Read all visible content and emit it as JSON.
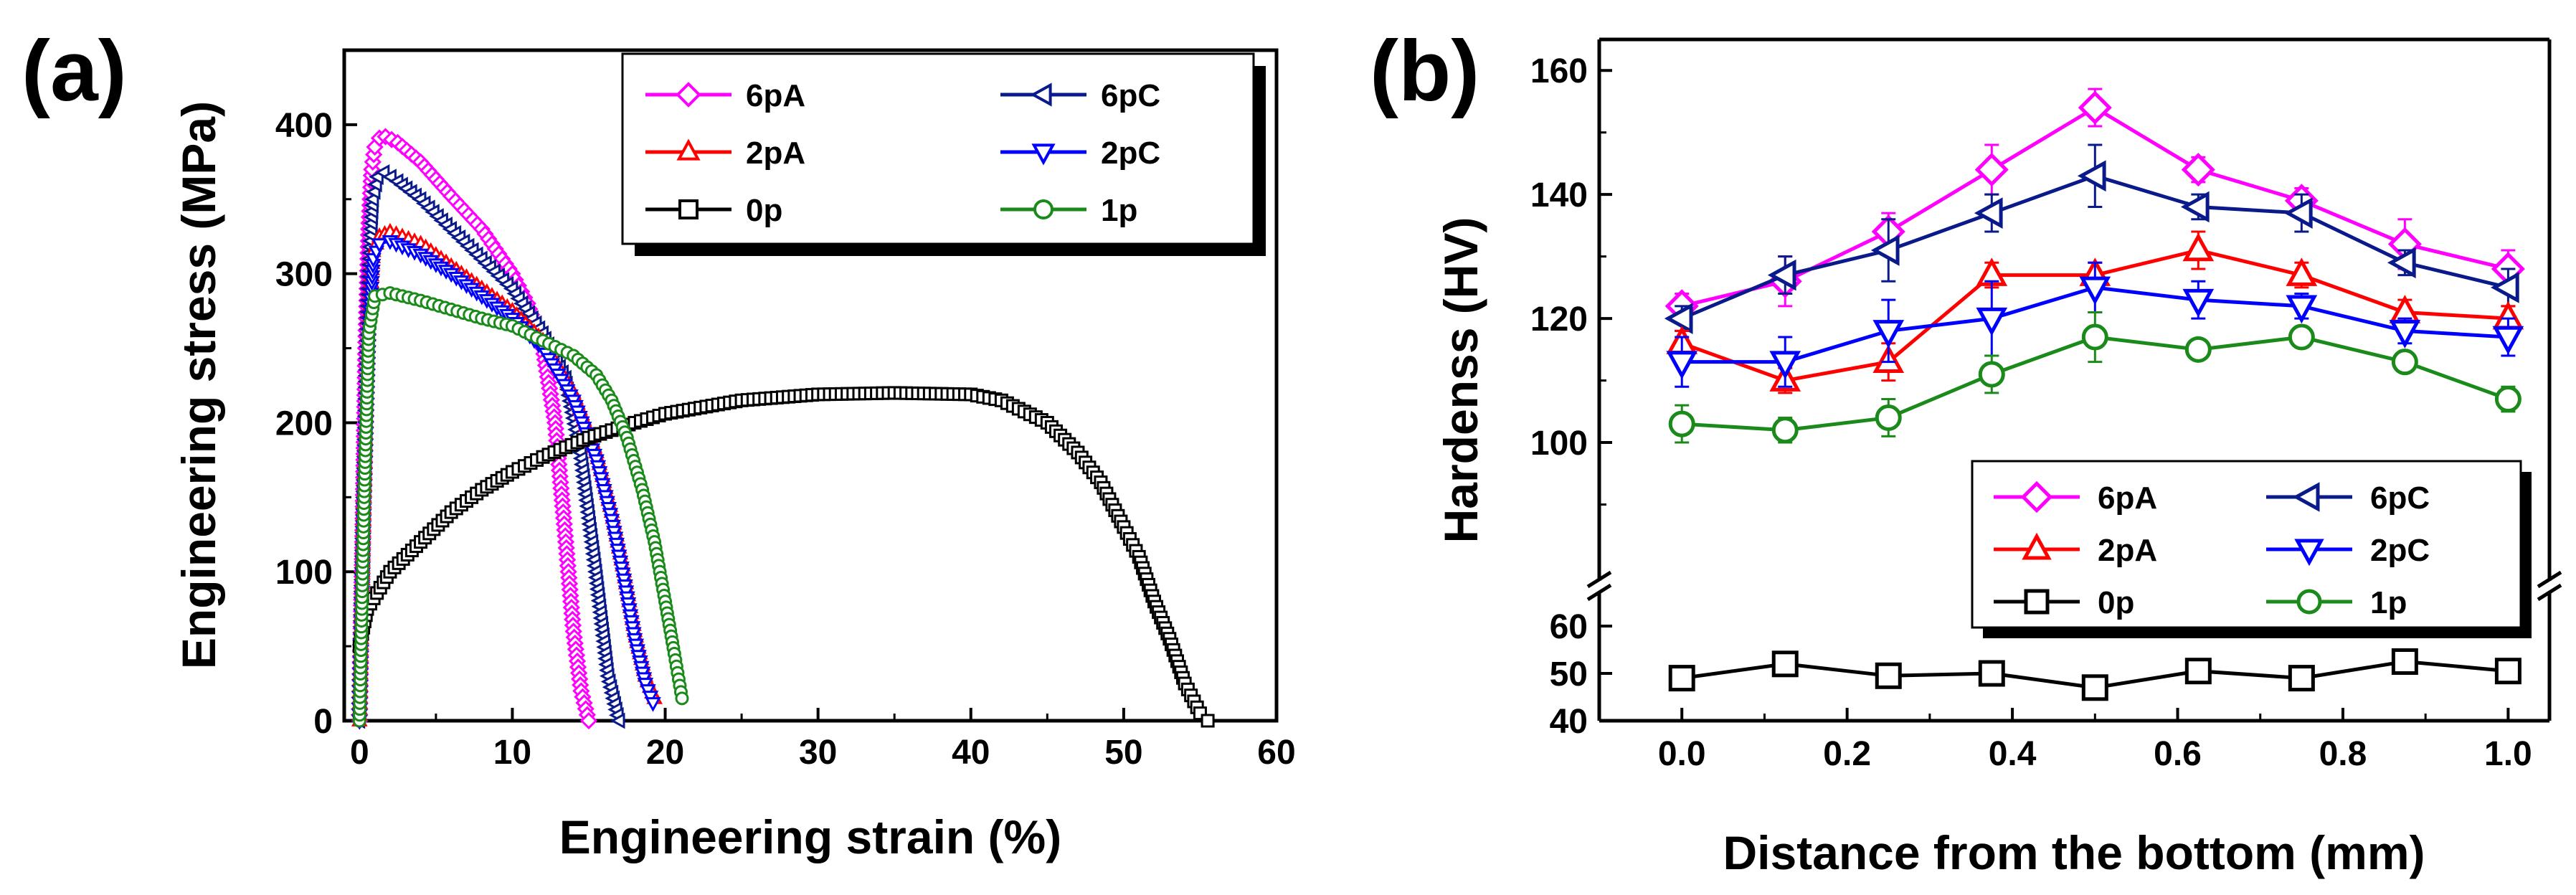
{
  "chart_data": [
    {
      "panel": "(a)",
      "type": "line",
      "xlabel": "Engineering strain (%)",
      "ylabel": "Engineering stress (MPa)",
      "xlim": [
        -1,
        60
      ],
      "ylim": [
        0,
        450
      ],
      "xticks": [
        0,
        10,
        20,
        30,
        40,
        50,
        60
      ],
      "yticks": [
        0,
        100,
        200,
        300,
        400
      ],
      "grid": false,
      "legend_position": "top-right",
      "legend_columns": 2,
      "series": [
        {
          "name": "6pA",
          "color": "#ff00ff",
          "marker": "diamond",
          "x": [
            0,
            0.2,
            0.4,
            0.6,
            0.8,
            1.0,
            1.3,
            1.7,
            2.5,
            4,
            6,
            8,
            10,
            11,
            12,
            12.8,
            13.5,
            14,
            14.5,
            15
          ],
          "y": [
            0,
            120,
            250,
            330,
            370,
            385,
            391,
            392,
            388,
            375,
            352,
            330,
            300,
            280,
            250,
            200,
            120,
            60,
            20,
            0
          ]
        },
        {
          "name": "6pC",
          "color": "#0a1a8a",
          "marker": "triangle-left",
          "x": [
            0,
            0.3,
            0.6,
            0.9,
            1.2,
            1.6,
            2.5,
            4,
            6,
            8,
            10,
            12,
            13.5,
            14.5,
            15.5,
            16.3,
            17
          ],
          "y": [
            0,
            150,
            290,
            350,
            365,
            368,
            362,
            350,
            330,
            310,
            290,
            260,
            230,
            180,
            100,
            30,
            0
          ]
        },
        {
          "name": "2pA",
          "color": "#ff0000",
          "marker": "triangle-up",
          "x": [
            0,
            0.3,
            0.6,
            0.9,
            1.3,
            2,
            4,
            6,
            8,
            10,
            12,
            14,
            15.5,
            16.5,
            17.3,
            18,
            18.7,
            19.3
          ],
          "y": [
            0,
            150,
            270,
            315,
            325,
            328,
            320,
            305,
            290,
            275,
            255,
            220,
            180,
            140,
            100,
            60,
            30,
            15
          ]
        },
        {
          "name": "2pC",
          "color": "#0000ff",
          "marker": "triangle-down",
          "x": [
            0,
            0.3,
            0.6,
            0.9,
            1.3,
            2,
            4,
            6,
            8,
            10,
            12,
            14,
            15.5,
            16.5,
            17.3,
            18,
            18.7,
            19.2
          ],
          "y": [
            0,
            150,
            260,
            310,
            320,
            322,
            313,
            300,
            285,
            270,
            250,
            215,
            175,
            135,
            95,
            55,
            25,
            12
          ]
        },
        {
          "name": "0p",
          "color": "#000000",
          "marker": "square",
          "x": [
            0,
            0.5,
            2,
            4,
            6,
            8,
            10,
            12,
            15,
            18,
            20,
            25,
            30,
            35,
            40,
            42,
            45,
            47,
            48.5,
            50,
            51,
            52,
            53,
            54,
            55,
            55.5
          ],
          "y": [
            50,
            75,
            100,
            120,
            140,
            155,
            167,
            177,
            190,
            200,
            206,
            215,
            219,
            220,
            219,
            215,
            200,
            180,
            160,
            130,
            110,
            80,
            55,
            25,
            5,
            0
          ]
        },
        {
          "name": "1p",
          "color": "#1a8a1a",
          "marker": "circle",
          "x": [
            0,
            0.3,
            0.6,
            1.0,
            2,
            4,
            6,
            8,
            10,
            12,
            14,
            15.5,
            16.5,
            17.5,
            18.5,
            19.3,
            20,
            20.6,
            21.1
          ],
          "y": [
            0,
            150,
            260,
            285,
            287,
            282,
            276,
            270,
            265,
            255,
            245,
            232,
            215,
            190,
            155,
            120,
            80,
            45,
            15
          ]
        }
      ]
    },
    {
      "panel": "(b)",
      "type": "line",
      "xlabel": "Distance from the bottom (mm)",
      "ylabel": "Hardenss (HV)",
      "xlim": [
        -0.1,
        1.05
      ],
      "ylim_upper": [
        80,
        165
      ],
      "ylim_lower": [
        40,
        65
      ],
      "broken_axis": true,
      "xticks": [
        0.0,
        0.2,
        0.4,
        0.6,
        0.8,
        1.0
      ],
      "yticks_upper": [
        100,
        120,
        140,
        160
      ],
      "yticks_lower": [
        40,
        50,
        60
      ],
      "grid": false,
      "legend_position": "bottom-right",
      "legend_columns": 2,
      "x": [
        0.0,
        0.125,
        0.25,
        0.375,
        0.5,
        0.625,
        0.75,
        0.875,
        1.0
      ],
      "series": [
        {
          "name": "6pA",
          "color": "#ff00ff",
          "marker": "diamond",
          "values": [
            122,
            126,
            134,
            144,
            154,
            144,
            139,
            132,
            128
          ],
          "errors": [
            2,
            4,
            3,
            4,
            3,
            2,
            2,
            4,
            3
          ]
        },
        {
          "name": "6pC",
          "color": "#0a1a8a",
          "marker": "triangle-left",
          "values": [
            120,
            127,
            131,
            137,
            143,
            138,
            137,
            129,
            125
          ],
          "errors": [
            2,
            3,
            5,
            3,
            5,
            2,
            3,
            2,
            3
          ]
        },
        {
          "name": "2pA",
          "color": "#ff0000",
          "marker": "triangle-up",
          "values": [
            116,
            110,
            113,
            127,
            127,
            131,
            127,
            121,
            120
          ],
          "errors": [
            2,
            2,
            3,
            2,
            2,
            3,
            2,
            2,
            2
          ]
        },
        {
          "name": "2pC",
          "color": "#0000ff",
          "marker": "triangle-down",
          "values": [
            113,
            113,
            118,
            120,
            125,
            123,
            122,
            118,
            117
          ],
          "errors": [
            4,
            4,
            5,
            6,
            4,
            3,
            2,
            2,
            3
          ]
        },
        {
          "name": "0p",
          "color": "#000000",
          "marker": "square",
          "values": [
            49,
            52,
            49.5,
            50,
            47,
            50.5,
            49,
            52.5,
            50.5
          ],
          "errors": [
            1.5,
            1,
            1,
            1,
            1,
            1.5,
            1,
            2.5,
            1
          ]
        },
        {
          "name": "1p",
          "color": "#1a8a1a",
          "marker": "circle",
          "values": [
            103,
            102,
            104,
            111,
            117,
            115,
            117,
            113,
            107
          ],
          "errors": [
            3,
            2,
            3,
            3,
            4,
            1,
            1,
            1,
            2
          ]
        }
      ]
    }
  ]
}
